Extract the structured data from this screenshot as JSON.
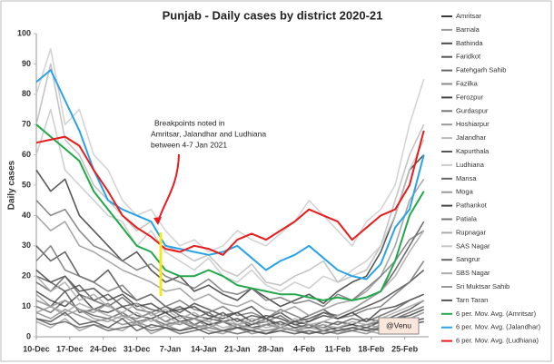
{
  "chart_data": {
    "type": "line",
    "title": "Punjab - Daily cases by district 2020-21",
    "y_label": "Daily cases",
    "annotation": [
      "Breakpoints noted in",
      "Amritsar,  Jalandhar and Ludhiana",
      "between 4-7 Jan 2021"
    ],
    "credit": "@Venu",
    "x": [
      "10-Dec",
      "13-Dec",
      "16-Dec",
      "19-Dec",
      "22-Dec",
      "25-Dec",
      "28-Dec",
      "31-Dec",
      "3-Jan",
      "6-Jan",
      "9-Jan",
      "12-Jan",
      "15-Jan",
      "18-Jan",
      "21-Jan",
      "24-Jan",
      "27-Jan",
      "30-Jan",
      "2-Feb",
      "5-Feb",
      "8-Feb",
      "11-Feb",
      "14-Feb",
      "17-Feb",
      "20-Feb",
      "23-Feb",
      "26-Feb",
      "1-Mar"
    ],
    "xlim": [
      "10-Dec",
      "2-Mar"
    ],
    "xticks": [
      "10-Dec",
      "17-Dec",
      "24-Dec",
      "31-Dec",
      "7-Jan",
      "14-Jan",
      "21-Jan",
      "28-Jan",
      "4-Feb",
      "11-Feb",
      "18-Feb",
      "25-Feb"
    ],
    "ylim": [
      0,
      100
    ],
    "yticks": [
      0,
      10,
      20,
      30,
      40,
      50,
      60,
      70,
      80,
      90,
      100
    ],
    "grid": false,
    "legend": "right",
    "series": [
      {
        "name": "Amritsar",
        "color": "#3a3a3a",
        "values": [
          55,
          48,
          52,
          40,
          35,
          30,
          25,
          28,
          22,
          18,
          20,
          15,
          17,
          14,
          12,
          16,
          13,
          10,
          12,
          14,
          11,
          15,
          18,
          20,
          28,
          40,
          55,
          60
        ]
      },
      {
        "name": "Barnala",
        "color": "#9a9a9a",
        "values": [
          5,
          3,
          6,
          2,
          4,
          3,
          2,
          5,
          1,
          3,
          2,
          4,
          2,
          1,
          3,
          2,
          1,
          2,
          3,
          1,
          2,
          1,
          3,
          2,
          1,
          4,
          6,
          8
        ]
      },
      {
        "name": "Bathinda",
        "color": "#4a4a4a",
        "values": [
          30,
          25,
          28,
          20,
          18,
          22,
          15,
          12,
          14,
          10,
          8,
          11,
          9,
          7,
          8,
          10,
          6,
          8,
          5,
          7,
          9,
          6,
          8,
          10,
          12,
          15,
          18,
          22
        ]
      },
      {
        "name": "Faridkot",
        "color": "#555555",
        "values": [
          12,
          10,
          15,
          8,
          9,
          11,
          7,
          6,
          8,
          5,
          7,
          4,
          6,
          5,
          3,
          4,
          6,
          3,
          5,
          4,
          3,
          5,
          4,
          6,
          5,
          7,
          9,
          12
        ]
      },
      {
        "name": "Fatehgarh Sahib",
        "color": "#666666",
        "values": [
          10,
          8,
          12,
          9,
          7,
          6,
          8,
          5,
          6,
          4,
          5,
          3,
          4,
          5,
          3,
          2,
          4,
          3,
          2,
          3,
          4,
          2,
          3,
          4,
          5,
          6,
          8,
          10
        ]
      },
      {
        "name": "Fazilka",
        "color": "#8a8a8a",
        "values": [
          8,
          6,
          9,
          7,
          5,
          6,
          4,
          5,
          3,
          4,
          2,
          3,
          4,
          2,
          3,
          1,
          2,
          3,
          2,
          1,
          2,
          3,
          2,
          1,
          3,
          2,
          4,
          5
        ]
      },
      {
        "name": "Ferozpur",
        "color": "#444444",
        "values": [
          15,
          12,
          10,
          14,
          9,
          8,
          10,
          7,
          6,
          8,
          5,
          6,
          4,
          5,
          6,
          3,
          4,
          5,
          3,
          4,
          2,
          3,
          4,
          3,
          5,
          6,
          7,
          9
        ]
      },
      {
        "name": "Gurdaspur",
        "color": "#777777",
        "values": [
          25,
          30,
          22,
          20,
          18,
          15,
          17,
          12,
          14,
          10,
          12,
          9,
          8,
          10,
          7,
          8,
          6,
          9,
          7,
          5,
          8,
          6,
          7,
          9,
          10,
          14,
          18,
          25
        ]
      },
      {
        "name": "Hoshiarpur",
        "color": "#999999",
        "values": [
          40,
          35,
          38,
          30,
          28,
          25,
          22,
          20,
          18,
          15,
          16,
          12,
          14,
          11,
          10,
          12,
          9,
          8,
          10,
          7,
          9,
          11,
          12,
          15,
          20,
          30,
          45,
          52
        ]
      },
      {
        "name": "Jalandhar",
        "color": "#bbbbbb",
        "values": [
          70,
          90,
          65,
          60,
          50,
          45,
          40,
          35,
          38,
          30,
          28,
          25,
          27,
          22,
          20,
          24,
          18,
          17,
          20,
          22,
          25,
          18,
          20,
          22,
          30,
          45,
          60,
          70
        ]
      },
      {
        "name": "Kapurthala",
        "color": "#555555",
        "values": [
          20,
          18,
          15,
          17,
          12,
          14,
          10,
          11,
          9,
          8,
          10,
          7,
          6,
          8,
          5,
          7,
          6,
          4,
          5,
          6,
          8,
          7,
          9,
          12,
          15,
          22,
          30,
          38
        ]
      },
      {
        "name": "Ludhiana",
        "color": "#cccccc",
        "values": [
          80,
          95,
          70,
          75,
          60,
          55,
          45,
          40,
          42,
          35,
          30,
          32,
          28,
          30,
          35,
          32,
          30,
          34,
          38,
          45,
          40,
          35,
          30,
          38,
          42,
          50,
          70,
          85
        ]
      },
      {
        "name": "Mansa",
        "color": "#666666",
        "values": [
          6,
          4,
          5,
          3,
          4,
          2,
          3,
          4,
          2,
          3,
          1,
          2,
          3,
          2,
          1,
          2,
          1,
          3,
          2,
          1,
          2,
          1,
          2,
          3,
          2,
          3,
          4,
          5
        ]
      },
      {
        "name": "Moga",
        "color": "#999999",
        "values": [
          8,
          10,
          7,
          9,
          6,
          5,
          7,
          4,
          6,
          3,
          5,
          4,
          3,
          2,
          4,
          3,
          2,
          3,
          2,
          3,
          2,
          1,
          3,
          2,
          4,
          3,
          5,
          6
        ]
      },
      {
        "name": "Pathankot",
        "color": "#444444",
        "values": [
          22,
          18,
          20,
          15,
          16,
          12,
          14,
          10,
          11,
          8,
          9,
          10,
          7,
          6,
          8,
          5,
          7,
          6,
          4,
          5,
          7,
          6,
          8,
          5,
          9,
          10,
          12,
          14
        ]
      },
      {
        "name": "Patiala",
        "color": "#777777",
        "values": [
          45,
          40,
          42,
          35,
          30,
          28,
          25,
          22,
          24,
          20,
          18,
          16,
          19,
          15,
          14,
          16,
          12,
          13,
          11,
          12,
          10,
          14,
          12,
          16,
          20,
          25,
          32,
          35
        ]
      },
      {
        "name": "Rupnagar",
        "color": "#aaaaaa",
        "values": [
          12,
          10,
          8,
          11,
          9,
          7,
          6,
          8,
          5,
          7,
          4,
          6,
          5,
          3,
          4,
          5,
          3,
          4,
          2,
          3,
          4,
          3,
          5,
          4,
          6,
          8,
          10,
          12
        ]
      },
      {
        "name": "SAS Nagar",
        "color": "#c8c8c8",
        "values": [
          60,
          75,
          55,
          50,
          45,
          40,
          38,
          30,
          35,
          28,
          25,
          22,
          26,
          20,
          18,
          22,
          17,
          15,
          18,
          16,
          20,
          18,
          22,
          25,
          30,
          40,
          55,
          65
        ]
      },
      {
        "name": "Sangrur",
        "color": "#666666",
        "values": [
          18,
          15,
          20,
          14,
          12,
          10,
          13,
          9,
          8,
          10,
          7,
          6,
          8,
          5,
          6,
          4,
          5,
          7,
          4,
          3,
          5,
          4,
          6,
          5,
          7,
          9,
          12,
          14
        ]
      },
      {
        "name": "SBS Nagar",
        "color": "#aaaaaa",
        "values": [
          20,
          15,
          18,
          12,
          14,
          10,
          8,
          11,
          7,
          9,
          6,
          8,
          5,
          7,
          4,
          6,
          5,
          3,
          6,
          4,
          5,
          7,
          9,
          12,
          15,
          20,
          28,
          35
        ]
      },
      {
        "name": "Sri Muktsar Sahib",
        "color": "#999999",
        "values": [
          14,
          10,
          12,
          9,
          8,
          11,
          7,
          6,
          8,
          5,
          4,
          6,
          3,
          5,
          4,
          2,
          4,
          3,
          2,
          4,
          3,
          2,
          3,
          4,
          3,
          5,
          6,
          8
        ]
      },
      {
        "name": "Tarn Taran",
        "color": "#555555",
        "values": [
          6,
          5,
          8,
          4,
          5,
          3,
          6,
          2,
          4,
          3,
          2,
          3,
          1,
          2,
          3,
          2,
          1,
          2,
          1,
          2,
          1,
          2,
          3,
          2,
          3,
          4,
          5,
          6
        ]
      },
      {
        "name": "6 per. Mov. Avg. (Amritsar)",
        "color": "#22a84a",
        "values": [
          70,
          66,
          62,
          58,
          48,
          42,
          36,
          30,
          28,
          22,
          20,
          20,
          22,
          20,
          17,
          16,
          15,
          14,
          14,
          13,
          12,
          13,
          12,
          13,
          15,
          25,
          40,
          48
        ]
      },
      {
        "name": "6 per. Mov. Avg. (Jalandhar)",
        "color": "#29a3e8",
        "values": [
          84,
          88,
          78,
          68,
          55,
          45,
          42,
          40,
          38,
          30,
          29,
          28,
          27,
          28,
          30,
          26,
          22,
          25,
          27,
          30,
          26,
          22,
          20,
          19,
          24,
          36,
          42,
          60
        ]
      },
      {
        "name": "6 per. Mov. Avg. (Ludhiana)",
        "color": "#e81c1c",
        "values": [
          64,
          65,
          66,
          63,
          55,
          48,
          40,
          36,
          33,
          29,
          28,
          30,
          29,
          27,
          32,
          34,
          32,
          35,
          38,
          42,
          40,
          38,
          32,
          36,
          40,
          42,
          50,
          68
        ]
      }
    ]
  }
}
